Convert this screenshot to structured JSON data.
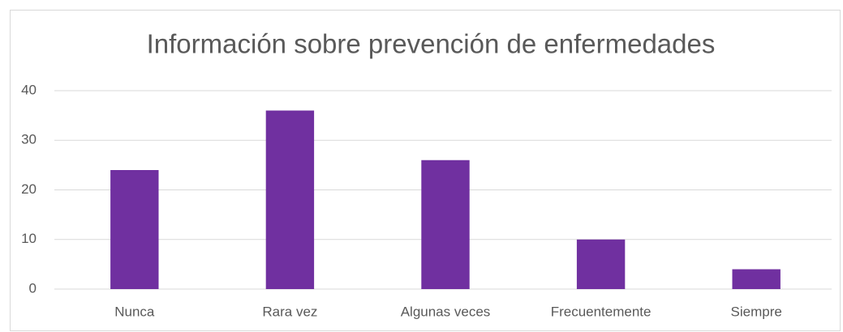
{
  "chart_data": {
    "type": "bar",
    "title": "Información sobre prevención de enfermedades",
    "categories": [
      "Nunca",
      "Rara vez",
      "Algunas veces",
      "Frecuentemente",
      "Siempre"
    ],
    "values": [
      24,
      36,
      26,
      10,
      4
    ],
    "color": "#7030a0",
    "ylim": [
      0,
      40
    ],
    "yticks": [
      0,
      10,
      20,
      30,
      40
    ],
    "grid": true
  }
}
